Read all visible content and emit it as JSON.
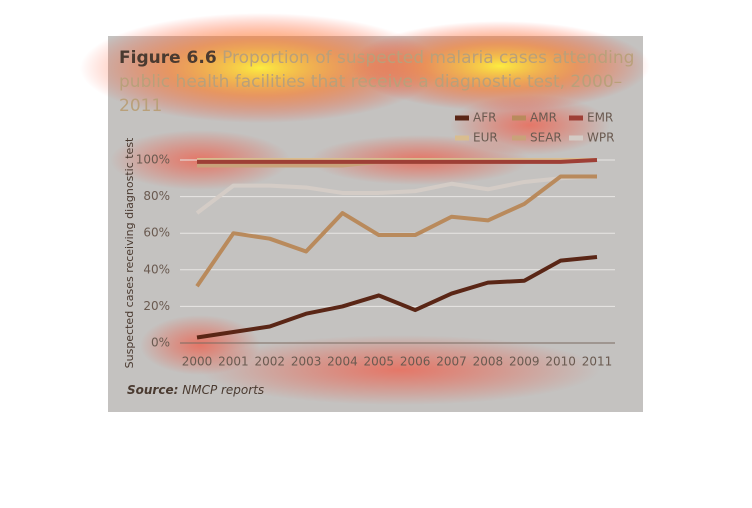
{
  "chart_data": {
    "type": "line",
    "figure_label": "Figure 6.6",
    "title": "Proportion of suspected malaria cases attending public health facilities that receive a diagnostic test, 2000–2011",
    "y_label": "Suspected cases receiving diagnostic test",
    "source_label": "Source:",
    "source_text": "NMCP reports",
    "categories": [
      "2000",
      "2001",
      "2002",
      "2003",
      "2004",
      "2005",
      "2006",
      "2007",
      "2008",
      "2009",
      "2010",
      "2011"
    ],
    "ylim": [
      0,
      100
    ],
    "yticks": [
      {
        "value": 0,
        "label": "0%"
      },
      {
        "value": 20,
        "label": "20%"
      },
      {
        "value": 40,
        "label": "40%"
      },
      {
        "value": 60,
        "label": "60%"
      },
      {
        "value": 80,
        "label": "80%"
      },
      {
        "value": 100,
        "label": "100%"
      }
    ],
    "grid": true,
    "series": [
      {
        "name": "AFR",
        "color": "#5a2616",
        "values": [
          3,
          6,
          9,
          16,
          20,
          26,
          18,
          27,
          33,
          34,
          45,
          47
        ]
      },
      {
        "name": "AMR",
        "color": "#b98a5c",
        "values": [
          31,
          60,
          57,
          50,
          71,
          59,
          59,
          69,
          67,
          76,
          91,
          91
        ]
      },
      {
        "name": "EMR",
        "color": "#9e3f36",
        "values": [
          99,
          99,
          99,
          99,
          99,
          99,
          99,
          99,
          99,
          99,
          99,
          100
        ]
      },
      {
        "name": "EUR",
        "color": "#d9bd8f",
        "values": [
          100,
          100,
          100,
          100,
          100,
          100,
          100,
          100,
          100,
          100,
          100,
          100
        ]
      },
      {
        "name": "SEAR",
        "color": "#c9a27a",
        "values": [
          97,
          97,
          97,
          97,
          97,
          99,
          99,
          99,
          99,
          100,
          100,
          100
        ]
      },
      {
        "name": "WPR",
        "color": "#d4ccc6",
        "values": [
          71,
          86,
          86,
          85,
          82,
          82,
          83,
          87,
          84,
          88,
          90,
          91
        ]
      }
    ]
  }
}
